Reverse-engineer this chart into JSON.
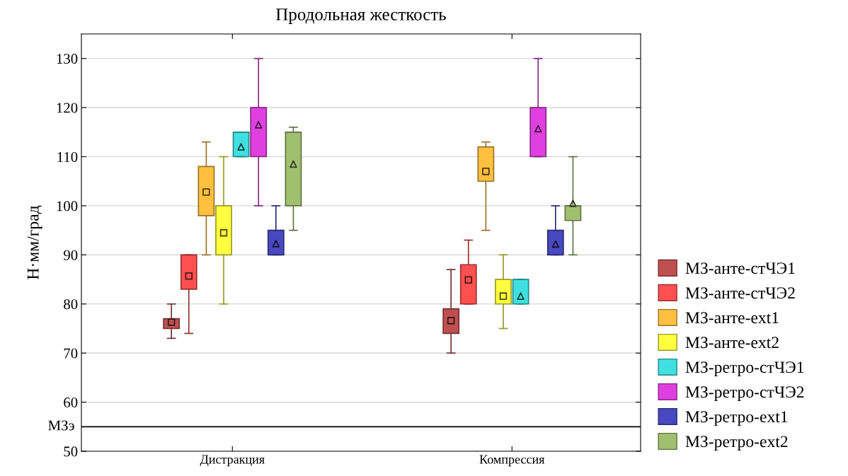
{
  "chart_data": {
    "type": "box",
    "title": "Продольная жесткость",
    "ylabel": "Н·мм/град",
    "categories": [
      "Дистракция",
      "Компрессия"
    ],
    "ylim": [
      50,
      135
    ],
    "yticks": [
      50,
      60,
      70,
      80,
      90,
      100,
      110,
      120,
      130
    ],
    "grid": "y",
    "legend": "right",
    "ref_lines": [
      {
        "axis": "y",
        "value": 55,
        "label": "МЗэ",
        "color": "#000000",
        "line_style": "solid"
      }
    ],
    "series": [
      {
        "name": "МЗ-анте-стЧЭ1",
        "color": "#c05050",
        "marker": "square",
        "boxes": [
          {
            "low": 73,
            "q1": 75,
            "median": 76.3,
            "q3": 77,
            "high": 80
          },
          {
            "low": 70,
            "q1": 74,
            "median": 76.6,
            "q3": 79,
            "high": 87
          }
        ]
      },
      {
        "name": "МЗ-анте-стЧЭ2",
        "color": "#ff5050",
        "marker": "square",
        "boxes": [
          {
            "low": 74,
            "q1": 83,
            "median": 85.7,
            "q3": 90,
            "high": 90
          },
          {
            "low": 80,
            "q1": 80,
            "median": 84.9,
            "q3": 88,
            "high": 93
          }
        ]
      },
      {
        "name": "МЗ-анте-ext1",
        "color": "#ffc040",
        "marker": "square",
        "boxes": [
          {
            "low": 90,
            "q1": 98,
            "median": 102.8,
            "q3": 108,
            "high": 113
          },
          {
            "low": 95,
            "q1": 105,
            "median": 107,
            "q3": 112,
            "high": 113
          }
        ]
      },
      {
        "name": "МЗ-анте-ext2",
        "color": "#ffff40",
        "marker": "square",
        "boxes": [
          {
            "low": 80,
            "q1": 90,
            "median": 94.5,
            "q3": 100,
            "high": 110
          },
          {
            "low": 75,
            "q1": 80,
            "median": 81.6,
            "q3": 85,
            "high": 90
          }
        ]
      },
      {
        "name": "МЗ-ретро-стЧЭ1",
        "color": "#40e0e0",
        "marker": "triangle",
        "boxes": [
          {
            "low": 110,
            "q1": 110,
            "median": 112,
            "q3": 115,
            "high": 115
          },
          {
            "low": 80,
            "q1": 80,
            "median": 81.6,
            "q3": 85,
            "high": 85
          }
        ]
      },
      {
        "name": "МЗ-ретро-стЧЭ2",
        "color": "#e040e0",
        "marker": "triangle",
        "boxes": [
          {
            "low": 100,
            "q1": 110,
            "median": 116.5,
            "q3": 120,
            "high": 130
          },
          {
            "low": 110,
            "q1": 110,
            "median": 115.7,
            "q3": 120,
            "high": 130
          }
        ]
      },
      {
        "name": "МЗ-ретро-ext1",
        "color": "#4848c0",
        "marker": "triangle",
        "boxes": [
          {
            "low": 90,
            "q1": 90,
            "median": 92.3,
            "q3": 95,
            "high": 100
          },
          {
            "low": 90,
            "q1": 90,
            "median": 92.2,
            "q3": 95,
            "high": 100
          }
        ]
      },
      {
        "name": "МЗ-ретро-ext2",
        "color": "#a0c070",
        "marker": "triangle",
        "boxes": [
          {
            "low": 95,
            "q1": 100,
            "median": 108.5,
            "q3": 115,
            "high": 116
          },
          {
            "low": 90,
            "q1": 97,
            "median": 100,
            "q3": 100,
            "high": 110,
            "mean": 100.5
          }
        ]
      }
    ]
  }
}
